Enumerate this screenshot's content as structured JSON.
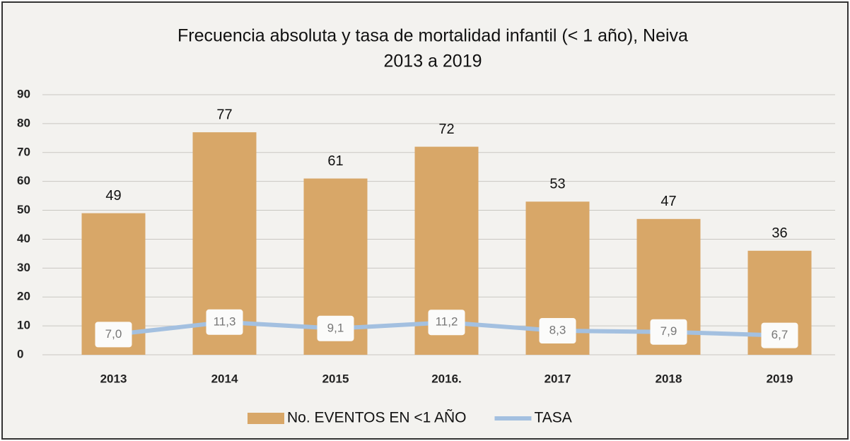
{
  "chart_data": {
    "type": "bar",
    "title": [
      "Frecuencia absoluta y tasa de mortalidad infantil (< 1 año), Neiva",
      "2013 a 2019"
    ],
    "categories": [
      "2013",
      "2014",
      "2015",
      "2016.",
      "2017",
      "2018",
      "2019"
    ],
    "series": [
      {
        "name": "No. EVENTOS EN <1 AÑO",
        "type": "bar",
        "color": "#d8a768",
        "values": [
          49,
          77,
          61,
          72,
          53,
          47,
          36
        ]
      },
      {
        "name": "TASA",
        "type": "line",
        "color": "#a3c0e0",
        "values": [
          7.0,
          11.3,
          9.1,
          11.2,
          8.3,
          7.9,
          6.7
        ],
        "value_labels": [
          "7,0",
          "11,3",
          "9,1",
          "11,2",
          "8,3",
          "7,9",
          "6,7"
        ]
      }
    ],
    "ylim": [
      0,
      90
    ],
    "yticks": [
      0,
      10,
      20,
      30,
      40,
      50,
      60,
      70,
      80,
      90
    ],
    "grid": true,
    "legend": "bottom"
  }
}
